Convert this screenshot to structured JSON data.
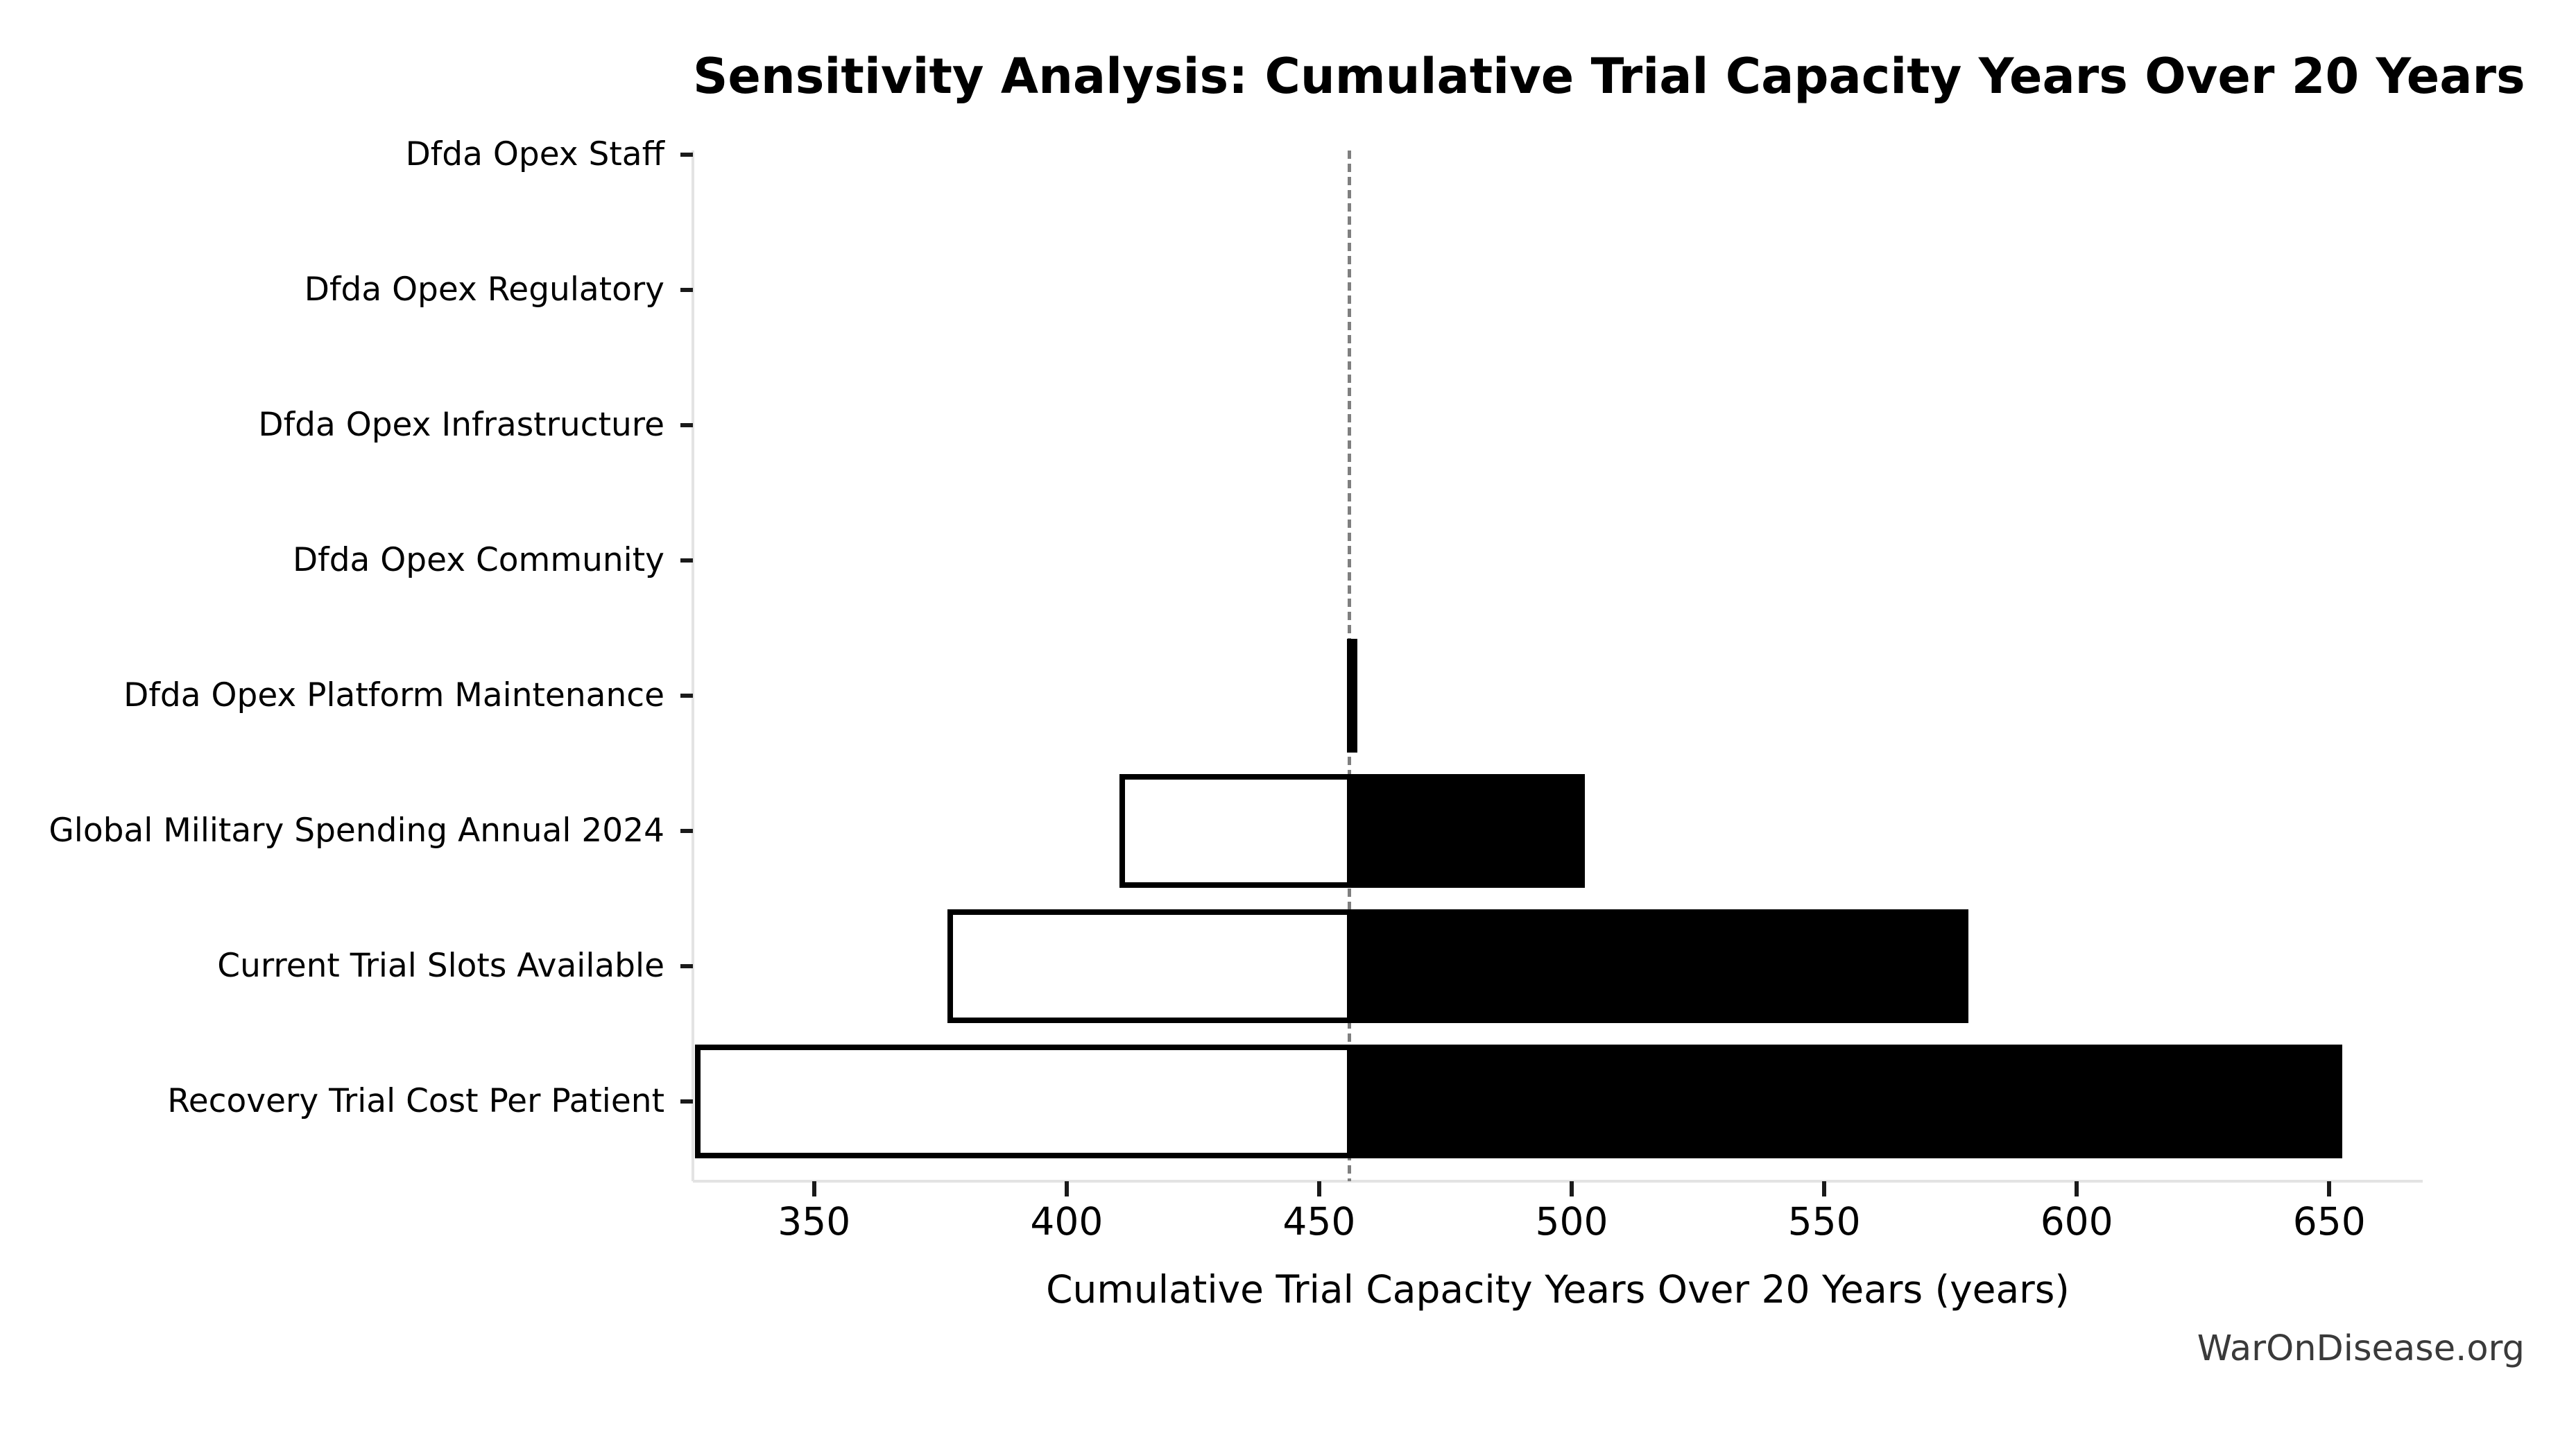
{
  "watermark": "WarOnDisease.org",
  "colors": {
    "background": "#ffffff",
    "bar_high_fill": "#000000",
    "bar_low_fill": "#ffffff",
    "bar_edge": "#000000",
    "baseline": "#7f7f7f",
    "spine": "#e3e3e3",
    "tick": "#1a1a1a",
    "text": "#000000",
    "watermark_text": "#3a3a3a"
  },
  "chart_data": {
    "type": "bar",
    "subtype": "tornado-sensitivity",
    "orientation": "horizontal",
    "title": "Sensitivity Analysis: Cumulative Trial Capacity Years Over 20 Years",
    "xlabel": "Cumulative Trial Capacity Years Over 20 Years (years)",
    "ylabel": "",
    "base_value": 456,
    "xlim": [
      326,
      668.5
    ],
    "xticks": [
      350,
      400,
      450,
      500,
      550,
      600,
      650
    ],
    "grid": false,
    "legend": "none",
    "categories": [
      "Dfda Opex Staff",
      "Dfda Opex Regulatory",
      "Dfda Opex Infrastructure",
      "Dfda Opex Community",
      "Dfda Opex Platform Maintenance",
      "Global Military Spending Annual 2024",
      "Current Trial Slots Available",
      "Recovery Trial Cost Per Patient"
    ],
    "series": [
      {
        "name": "low",
        "values": [
          456,
          456,
          456,
          456,
          456,
          411,
          377,
          327
        ]
      },
      {
        "name": "high",
        "values": [
          456,
          456,
          456,
          456,
          457,
          502,
          578,
          652
        ]
      }
    ],
    "baseline_note": "vertical gray dashed line at base value 456"
  }
}
